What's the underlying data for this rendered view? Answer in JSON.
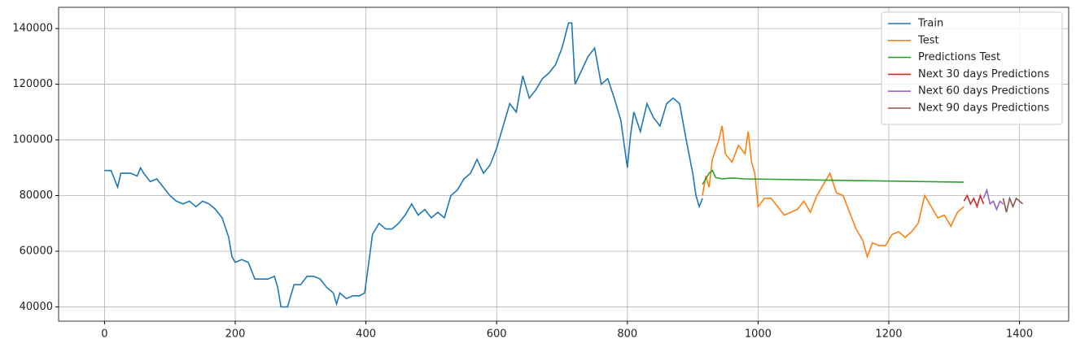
{
  "chart_data": {
    "type": "line",
    "xlim": [
      -70.25,
      1475.25
    ],
    "ylim": [
      34875,
      147625
    ],
    "xticks": [
      0,
      200,
      400,
      600,
      800,
      1000,
      1200,
      1400
    ],
    "yticks": [
      40000,
      60000,
      80000,
      100000,
      120000,
      140000
    ],
    "grid": true,
    "legend": "upper right",
    "series": [
      {
        "name": "Train",
        "color": "#1f77b4",
        "x": [
          0,
          10,
          15,
          20,
          25,
          40,
          50,
          55,
          60,
          70,
          80,
          90,
          100,
          110,
          120,
          130,
          140,
          150,
          160,
          170,
          180,
          190,
          195,
          200,
          210,
          220,
          230,
          240,
          250,
          260,
          265,
          270,
          280,
          290,
          300,
          310,
          320,
          330,
          340,
          350,
          355,
          360,
          370,
          380,
          390,
          398,
          405,
          410,
          420,
          430,
          440,
          450,
          460,
          470,
          480,
          490,
          500,
          510,
          520,
          530,
          540,
          550,
          560,
          570,
          580,
          590,
          600,
          610,
          620,
          630,
          640,
          650,
          660,
          670,
          680,
          690,
          700,
          710,
          715,
          720,
          730,
          740,
          750,
          760,
          770,
          780,
          790,
          800,
          805,
          810,
          820,
          830,
          840,
          850,
          860,
          870,
          880,
          890,
          900,
          905,
          910,
          915
        ],
        "values": [
          89000,
          89000,
          86000,
          83000,
          88000,
          88000,
          87000,
          90000,
          88000,
          85000,
          86000,
          83000,
          80000,
          78000,
          77000,
          78000,
          76000,
          78000,
          77000,
          75000,
          72000,
          65000,
          58000,
          56000,
          57000,
          56000,
          50000,
          50000,
          50000,
          51000,
          47000,
          40000,
          40000,
          48000,
          48000,
          51000,
          51000,
          50000,
          47000,
          45000,
          41000,
          45000,
          43000,
          44000,
          44000,
          45000,
          57000,
          66000,
          70000,
          68000,
          68000,
          70000,
          73000,
          77000,
          73000,
          75000,
          72000,
          74000,
          72000,
          80000,
          82000,
          86000,
          88000,
          93000,
          88000,
          91000,
          97000,
          105000,
          113000,
          110000,
          123000,
          115000,
          118000,
          122000,
          124000,
          127000,
          133000,
          142000,
          142000,
          120000,
          125000,
          130000,
          133000,
          120000,
          122000,
          115000,
          107000,
          90000,
          102000,
          110000,
          103000,
          113000,
          108000,
          105000,
          113000,
          115000,
          113000,
          100000,
          88000,
          80000,
          76000,
          79000
        ]
      },
      {
        "name": "Test",
        "color": "#ff7f0e",
        "x": [
          915,
          920,
          925,
          930,
          940,
          945,
          950,
          960,
          970,
          980,
          985,
          990,
          995,
          1000,
          1010,
          1020,
          1030,
          1040,
          1050,
          1060,
          1070,
          1080,
          1090,
          1100,
          1110,
          1120,
          1130,
          1140,
          1150,
          1160,
          1167,
          1175,
          1185,
          1195,
          1205,
          1215,
          1225,
          1235,
          1245,
          1255,
          1265,
          1275,
          1285,
          1295,
          1305,
          1315
        ],
        "values": [
          80000,
          87000,
          83000,
          93000,
          100000,
          105000,
          95000,
          92000,
          98000,
          95000,
          103000,
          92000,
          88000,
          76000,
          79000,
          79000,
          76000,
          73000,
          74000,
          75000,
          78000,
          74000,
          80000,
          84000,
          88000,
          81000,
          80000,
          74000,
          68000,
          64000,
          58000,
          63000,
          62000,
          62000,
          66000,
          67000,
          65000,
          67000,
          70000,
          80000,
          76000,
          72000,
          73000,
          69000,
          74000,
          76000
        ]
      },
      {
        "name": "Predictions Test",
        "color": "#2ca02c",
        "x": [
          915,
          920,
          925,
          930,
          935,
          945,
          960,
          980,
          1315
        ],
        "values": [
          84000,
          86000,
          88000,
          89000,
          86500,
          86000,
          86300,
          86000,
          84800
        ]
      },
      {
        "name": "Next 30 days Predictions",
        "color": "#d62728",
        "x": [
          1315,
          1320,
          1325,
          1330,
          1335,
          1340,
          1345
        ],
        "values": [
          78000,
          80000,
          77000,
          79000,
          76000,
          80000,
          77000
        ]
      },
      {
        "name": "Next 60 days Predictions",
        "color": "#9467bd",
        "x": [
          1345,
          1350,
          1355,
          1360,
          1365,
          1370,
          1375
        ],
        "values": [
          79000,
          82000,
          77000,
          78000,
          75000,
          78000,
          77000
        ]
      },
      {
        "name": "Next 90 days Predictions",
        "color": "#8c564b",
        "x": [
          1375,
          1380,
          1385,
          1390,
          1395,
          1400,
          1405
        ],
        "values": [
          79000,
          74000,
          79000,
          76000,
          79000,
          78000,
          77000
        ]
      }
    ]
  }
}
